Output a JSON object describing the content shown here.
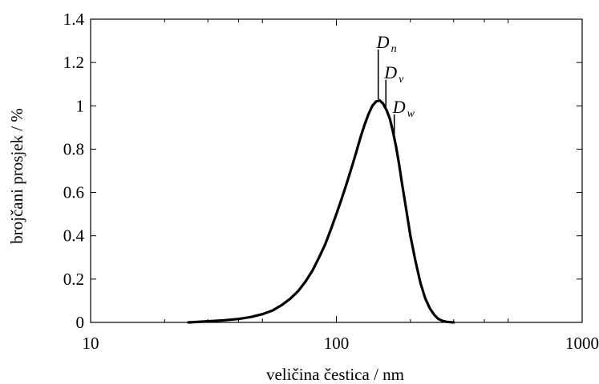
{
  "chart_data": {
    "type": "line",
    "xlabel": "veličina čestica / nm",
    "ylabel": "brojčani prosjek / %",
    "xscale": "log",
    "xlim": [
      10,
      1000
    ],
    "ylim": [
      0,
      1.4
    ],
    "x_ticks": [
      10,
      100,
      1000
    ],
    "x_tick_labels": [
      "10",
      "100",
      "1000"
    ],
    "y_ticks": [
      0,
      0.2,
      0.4,
      0.6,
      0.8,
      1,
      1.2,
      1.4
    ],
    "y_tick_labels": [
      "0",
      "0.2",
      "0.4",
      "0.6",
      "0.8",
      "1",
      "1.2",
      "1.4"
    ],
    "grid": false,
    "series": [
      {
        "x": [
          25,
          30,
          35,
          40,
          45,
          50,
          55,
          60,
          65,
          70,
          75,
          80,
          85,
          90,
          95,
          100,
          105,
          110,
          115,
          120,
          125,
          130,
          135,
          140,
          145,
          150,
          155,
          160,
          165,
          170,
          175,
          180,
          185,
          190,
          195,
          200,
          210,
          220,
          230,
          240,
          250,
          260,
          270,
          280,
          290,
          300
        ],
        "y": [
          0.0,
          0.005,
          0.01,
          0.016,
          0.025,
          0.038,
          0.055,
          0.08,
          0.11,
          0.145,
          0.19,
          0.24,
          0.3,
          0.36,
          0.43,
          0.5,
          0.57,
          0.64,
          0.71,
          0.78,
          0.85,
          0.91,
          0.96,
          1.0,
          1.02,
          1.025,
          1.01,
          0.98,
          0.94,
          0.88,
          0.81,
          0.73,
          0.64,
          0.56,
          0.48,
          0.4,
          0.28,
          0.18,
          0.11,
          0.065,
          0.035,
          0.016,
          0.007,
          0.003,
          0.001,
          0.0
        ]
      }
    ],
    "annotations": [
      {
        "main": "D",
        "sub": "n",
        "x": 148,
        "y_top": 1.26
      },
      {
        "main": "D",
        "sub": "v",
        "x": 159,
        "y_top": 1.12
      },
      {
        "main": "D",
        "sub": "w",
        "x": 172,
        "y_top": 0.96
      }
    ]
  }
}
